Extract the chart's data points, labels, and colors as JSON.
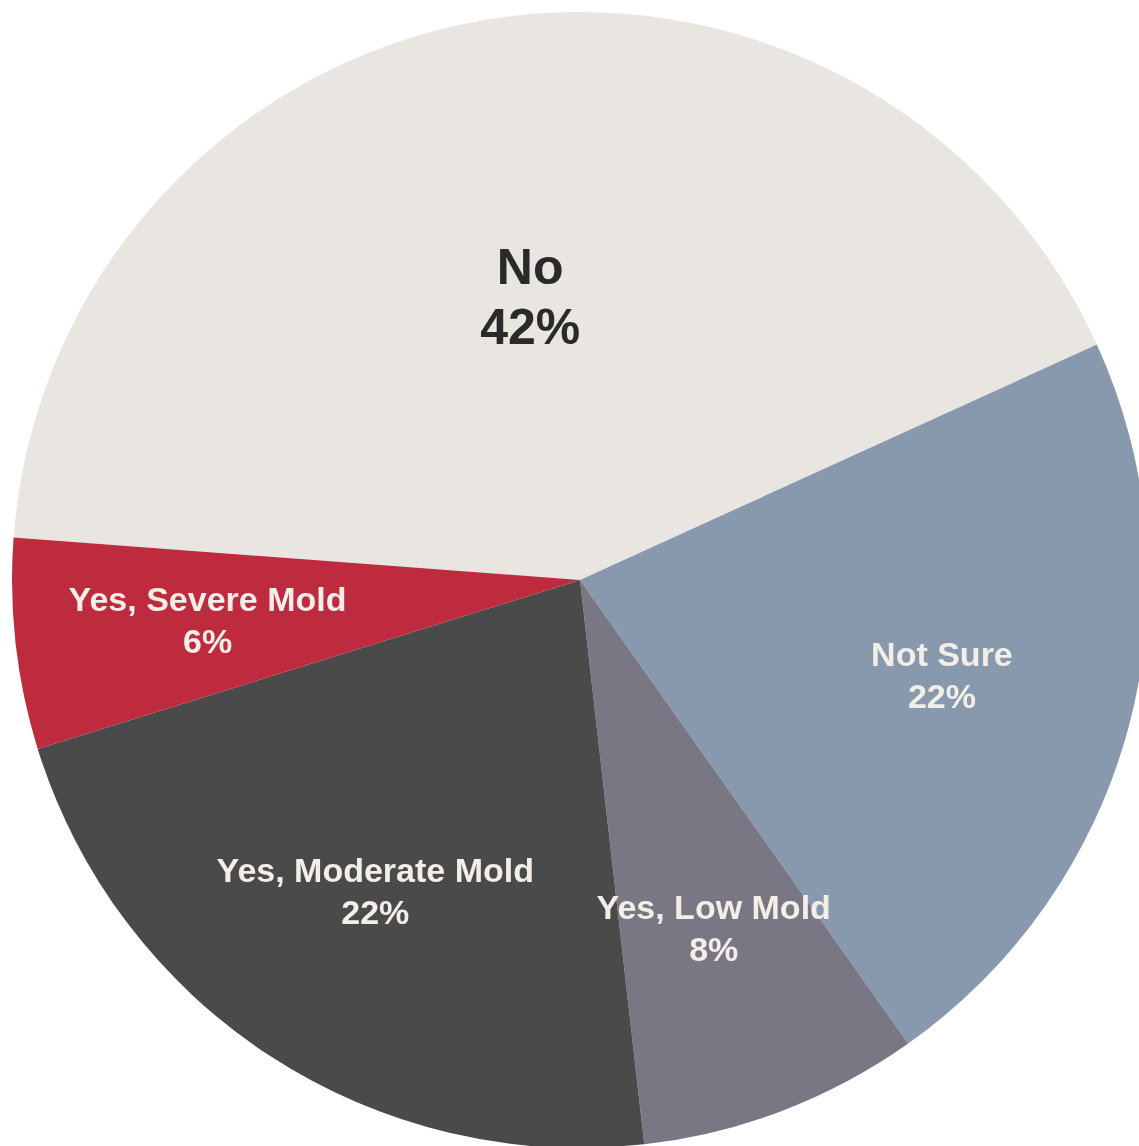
{
  "chart_data": {
    "type": "pie",
    "categories": [
      "No",
      "Not Sure",
      "Yes, Low Mold",
      "Yes, Moderate Mold",
      "Yes, Severe Mold"
    ],
    "values": [
      42,
      22,
      8,
      22,
      6
    ],
    "colors": [
      "#e9e6e1",
      "#8899ae",
      "#7a7785",
      "#4a4a4a",
      "#be2a3e"
    ],
    "value_labels": [
      "42%",
      "22%",
      "8%",
      "22%",
      "6%"
    ],
    "legend": false
  }
}
